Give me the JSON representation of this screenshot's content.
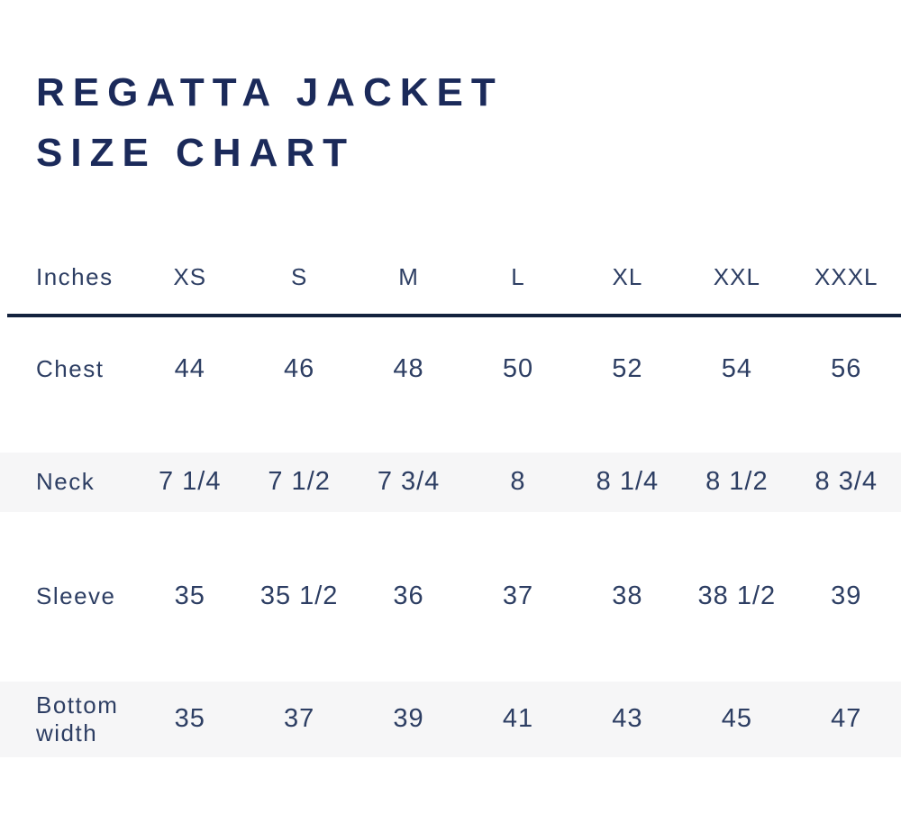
{
  "title": {
    "line1": "REGATTA JACKET",
    "line2": "SIZE CHART"
  },
  "chart_data": {
    "type": "table",
    "title": "REGATTA JACKET SIZE CHART",
    "unit_label": "Inches",
    "columns": [
      "XS",
      "S",
      "M",
      "L",
      "XL",
      "XXL",
      "XXXL"
    ],
    "rows": [
      {
        "label": "Chest",
        "values": [
          "44",
          "46",
          "48",
          "50",
          "52",
          "54",
          "56"
        ]
      },
      {
        "label": "Neck",
        "values": [
          "7 1/4",
          "7 1/2",
          "7 3/4",
          "8",
          "8 1/4",
          "8 1/2",
          "8 3/4"
        ]
      },
      {
        "label": "Sleeve",
        "values": [
          "35",
          "35 1/2",
          "36",
          "37",
          "38",
          "38 1/2",
          "39"
        ]
      },
      {
        "label": "Bottom width",
        "values": [
          "35",
          "37",
          "39",
          "41",
          "43",
          "45",
          "47"
        ]
      }
    ]
  },
  "colors": {
    "title": "#1b2a5a",
    "table_text": "#2d3e63",
    "divider": "#13223e",
    "stripe": "#f6f6f7",
    "background": "#ffffff"
  }
}
